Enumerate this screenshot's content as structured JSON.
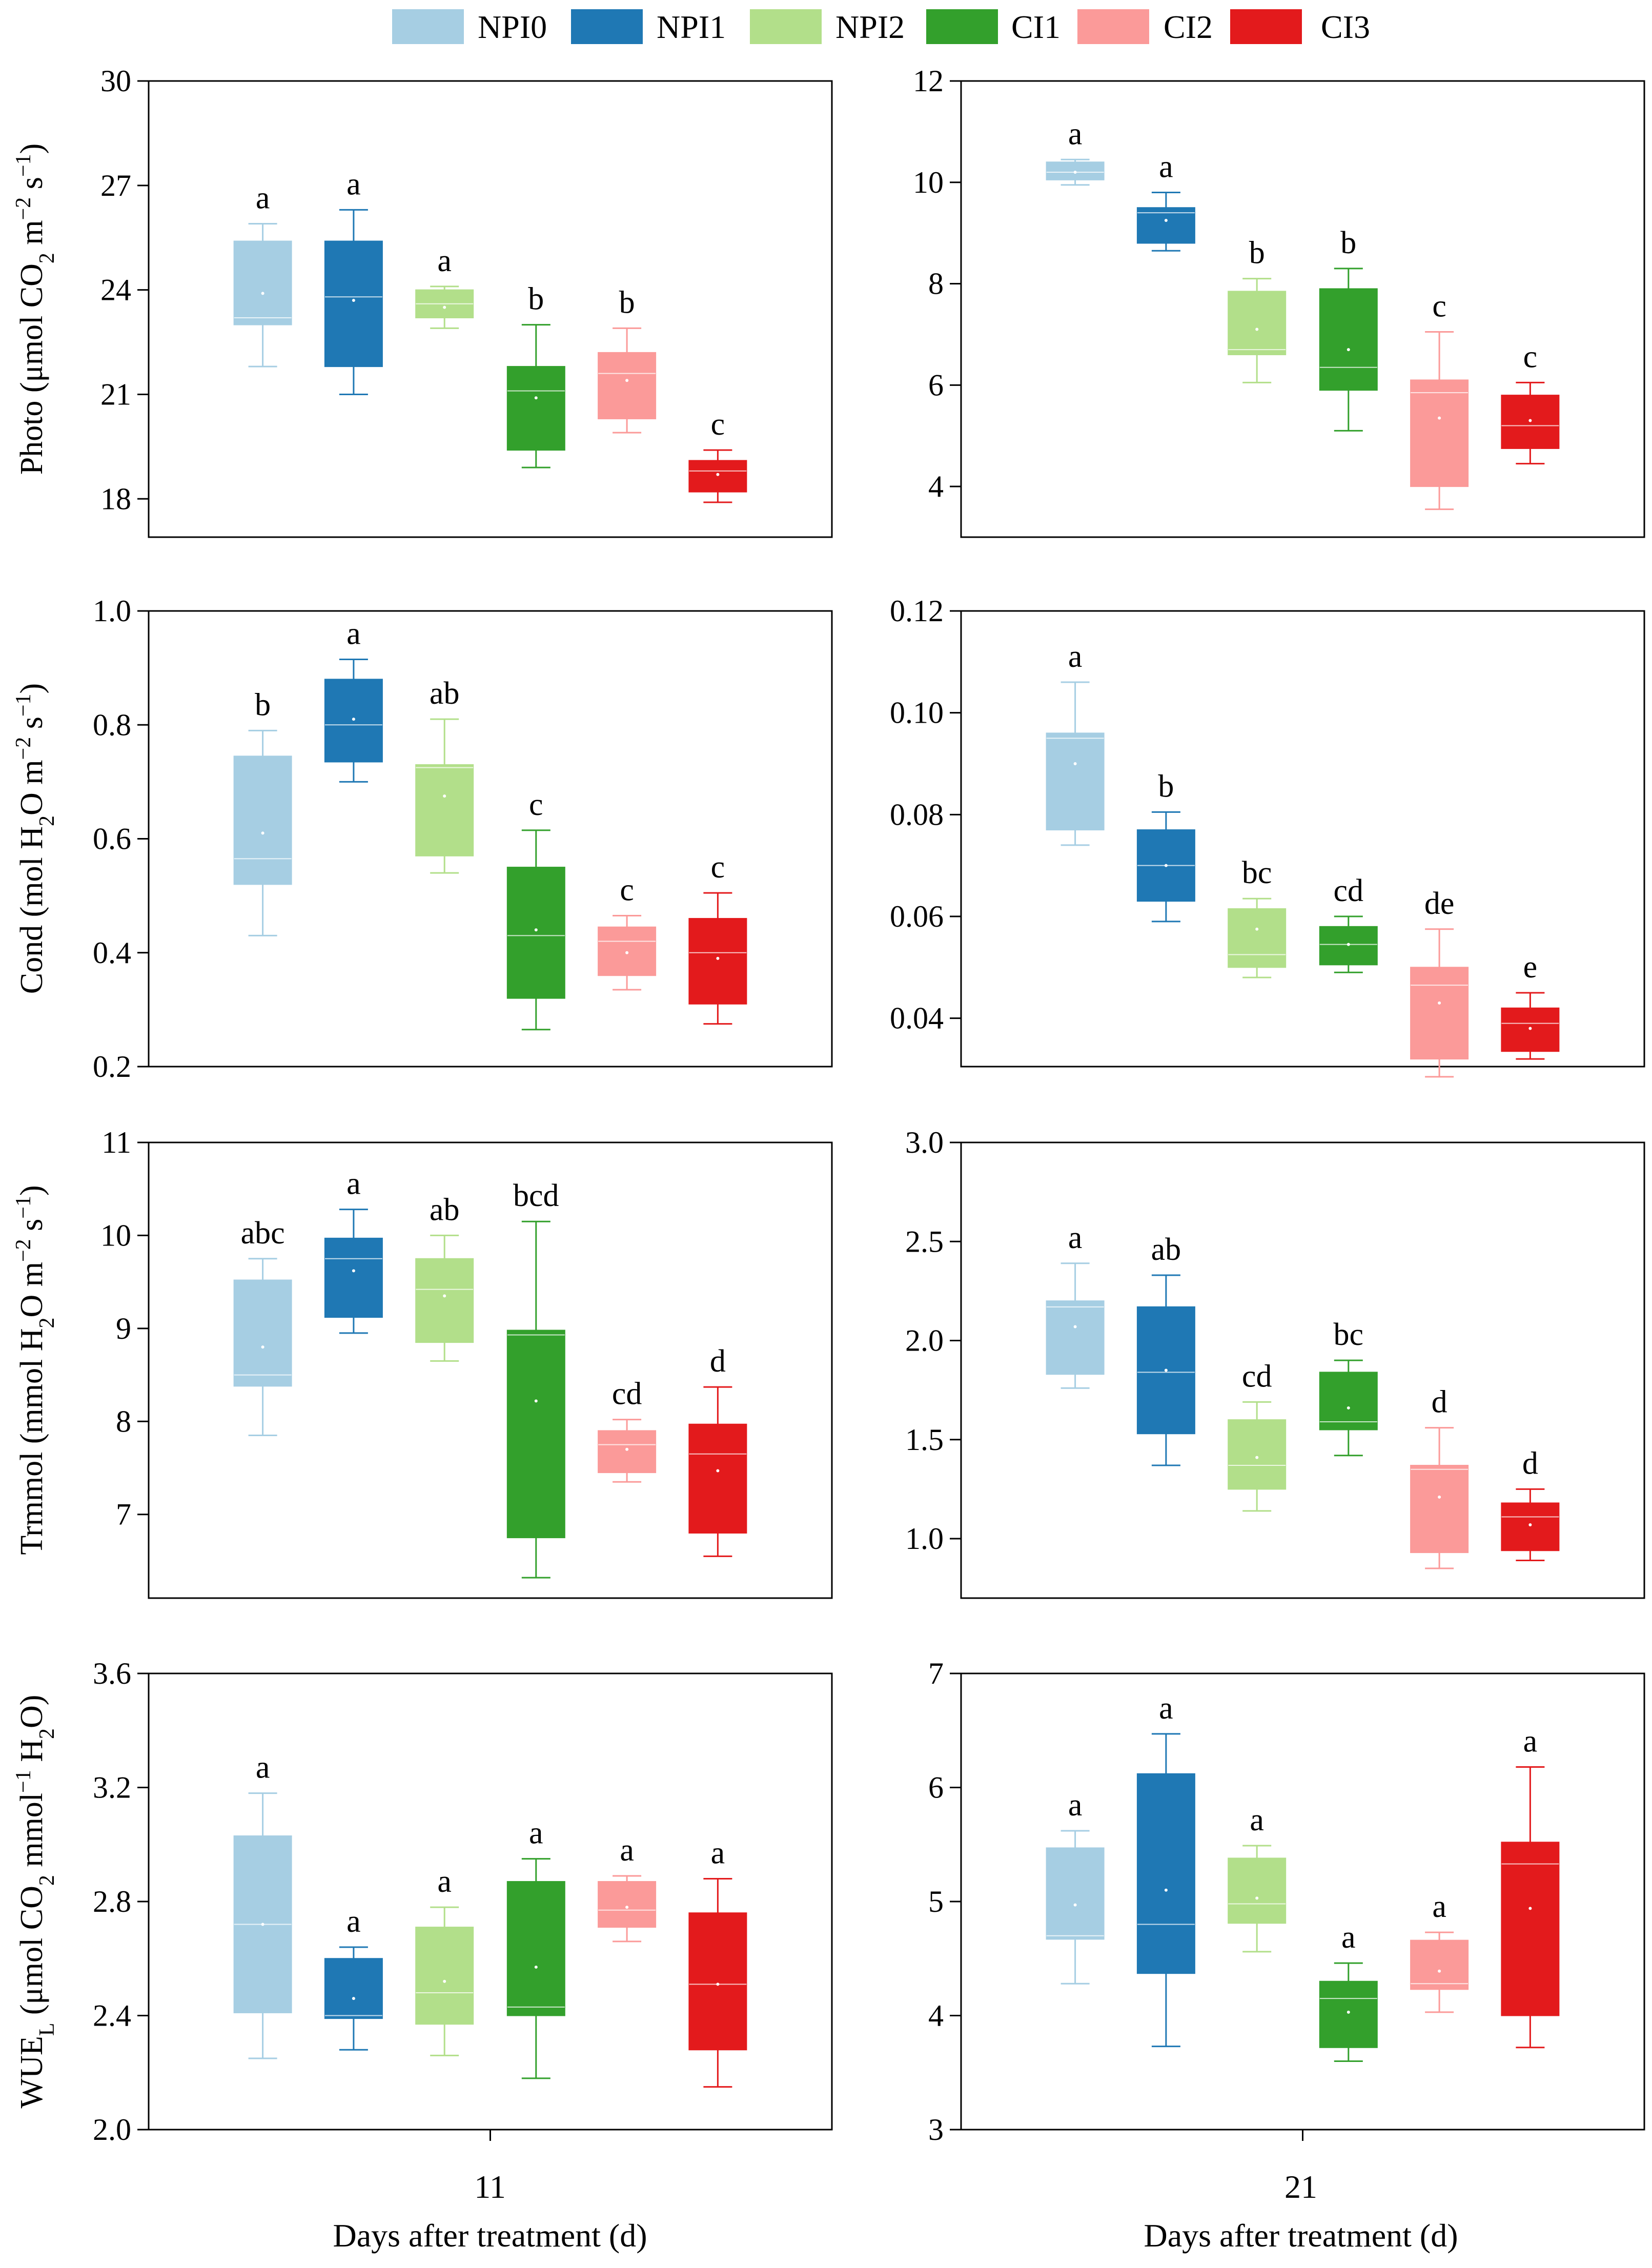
{
  "legend": [
    {
      "label": "NPI0",
      "color": "#a6cee3"
    },
    {
      "label": "NPI1",
      "color": "#1f78b4"
    },
    {
      "label": "NPI2",
      "color": "#b2df8a"
    },
    {
      "label": "CI1",
      "color": "#33a02c"
    },
    {
      "label": "CI2",
      "color": "#fb9a99"
    },
    {
      "label": "CI3",
      "color": "#e31a1c"
    }
  ],
  "x_axis": {
    "left_tick": "11",
    "right_tick": "21",
    "left_label": "Days after treatment (d)",
    "right_label": "Days after treatment (d)"
  },
  "y_labels": [
    {
      "main": "Photo (μmol CO",
      "s1": "2",
      "m2": " m",
      "p1": "−2",
      "m3": " s",
      "p2": "−1",
      "m4": ")"
    },
    {
      "main": "Cond (mol H",
      "s1": "2",
      "m2": "O m",
      "p1": "−2",
      "m3": " s",
      "p2": "−1",
      "m4": ")"
    },
    {
      "main": "Trmmol (mmol H",
      "s1": "2",
      "m2": "O m",
      "p1": "−2",
      "m3": " s",
      "p2": "−1",
      "m4": ")"
    },
    {
      "main": "WUE",
      "s1": "L",
      "m2": " (μmol CO",
      "s2": "2",
      "m3": " mmol",
      "p1": "−1",
      "m4": " H",
      "s3": "2",
      "m5": "O)"
    }
  ],
  "chart_data": [
    {
      "type": "box",
      "id": "photo-11",
      "row": 0,
      "col": 0,
      "ylabel": "Photo (μmol CO2 m−2 s−1)",
      "xlabel": "Days after treatment (d)",
      "x_tick": "11",
      "ylim": [
        16.9,
        30
      ],
      "yticks": [
        18,
        21,
        24,
        27,
        30
      ],
      "decimals": 0,
      "groups": [
        "NPI0",
        "NPI1",
        "NPI2",
        "CI1",
        "CI2",
        "CI3"
      ],
      "boxes": [
        {
          "min": 21.8,
          "q1": 23.0,
          "median": 23.2,
          "q3": 25.4,
          "max": 25.9,
          "mean": 23.9,
          "sig": "a"
        },
        {
          "min": 21.0,
          "q1": 21.8,
          "median": 23.8,
          "q3": 25.4,
          "max": 26.3,
          "mean": 23.7,
          "sig": "a"
        },
        {
          "min": 22.9,
          "q1": 23.2,
          "median": 23.6,
          "q3": 24.0,
          "max": 24.1,
          "mean": 23.5,
          "sig": "a"
        },
        {
          "min": 18.9,
          "q1": 19.4,
          "median": 21.1,
          "q3": 21.8,
          "max": 23.0,
          "mean": 20.9,
          "sig": "b"
        },
        {
          "min": 19.9,
          "q1": 20.3,
          "median": 21.6,
          "q3": 22.2,
          "max": 22.9,
          "mean": 21.4,
          "sig": "b"
        },
        {
          "min": 17.9,
          "q1": 18.2,
          "median": 18.8,
          "q3": 19.1,
          "max": 19.4,
          "mean": 18.7,
          "sig": "c"
        }
      ]
    },
    {
      "type": "box",
      "id": "photo-21",
      "row": 0,
      "col": 1,
      "ylabel": "Photo (μmol CO2 m−2 s−1)",
      "xlabel": "Days after treatment (d)",
      "x_tick": "21",
      "ylim": [
        3.0,
        12.0
      ],
      "yticks": [
        4,
        6,
        8,
        10,
        12
      ],
      "decimals": 0,
      "groups": [
        "NPI0",
        "NPI1",
        "NPI2",
        "CI1",
        "CI2",
        "CI3"
      ],
      "boxes": [
        {
          "min": 9.95,
          "q1": 10.05,
          "median": 10.2,
          "q3": 10.4,
          "max": 10.45,
          "mean": 10.2,
          "sig": "a"
        },
        {
          "min": 8.65,
          "q1": 8.8,
          "median": 9.4,
          "q3": 9.5,
          "max": 9.8,
          "mean": 9.25,
          "sig": "a"
        },
        {
          "min": 6.05,
          "q1": 6.6,
          "median": 6.7,
          "q3": 7.85,
          "max": 8.1,
          "mean": 7.1,
          "sig": "b"
        },
        {
          "min": 5.1,
          "q1": 5.9,
          "median": 6.35,
          "q3": 7.9,
          "max": 8.3,
          "mean": 6.7,
          "sig": "b"
        },
        {
          "min": 3.55,
          "q1": 4.0,
          "median": 5.85,
          "q3": 6.1,
          "max": 7.05,
          "mean": 5.35,
          "sig": "c"
        },
        {
          "min": 4.45,
          "q1": 4.75,
          "median": 5.2,
          "q3": 5.8,
          "max": 6.05,
          "mean": 5.3,
          "sig": "c"
        }
      ]
    },
    {
      "type": "box",
      "id": "cond-11",
      "row": 1,
      "col": 0,
      "ylabel": "Cond (mol H2O m−2 s−1)",
      "xlabel": "Days after treatment (d)",
      "x_tick": "11",
      "ylim": [
        0.2,
        1.0
      ],
      "yticks": [
        0.2,
        0.4,
        0.6,
        0.8,
        1.0
      ],
      "decimals": 1,
      "groups": [
        "NPI0",
        "NPI1",
        "NPI2",
        "CI1",
        "CI2",
        "CI3"
      ],
      "boxes": [
        {
          "min": 0.43,
          "q1": 0.52,
          "median": 0.565,
          "q3": 0.745,
          "max": 0.79,
          "mean": 0.61,
          "sig": "b"
        },
        {
          "min": 0.7,
          "q1": 0.735,
          "median": 0.8,
          "q3": 0.88,
          "max": 0.915,
          "mean": 0.81,
          "sig": "a"
        },
        {
          "min": 0.54,
          "q1": 0.57,
          "median": 0.725,
          "q3": 0.73,
          "max": 0.81,
          "mean": 0.675,
          "sig": "ab"
        },
        {
          "min": 0.265,
          "q1": 0.32,
          "median": 0.43,
          "q3": 0.55,
          "max": 0.615,
          "mean": 0.44,
          "sig": "c"
        },
        {
          "min": 0.335,
          "q1": 0.36,
          "median": 0.42,
          "q3": 0.445,
          "max": 0.465,
          "mean": 0.4,
          "sig": "c"
        },
        {
          "min": 0.275,
          "q1": 0.31,
          "median": 0.4,
          "q3": 0.46,
          "max": 0.505,
          "mean": 0.39,
          "sig": "c"
        }
      ]
    },
    {
      "type": "box",
      "id": "cond-21",
      "row": 1,
      "col": 1,
      "ylabel": "Cond (mol H2O m−2 s−1)",
      "xlabel": "Days after treatment (d)",
      "x_tick": "21",
      "ylim": [
        0.0305,
        0.12
      ],
      "yticks": [
        0.04,
        0.06,
        0.08,
        0.1,
        0.12
      ],
      "decimals": 2,
      "groups": [
        "NPI0",
        "NPI1",
        "NPI2",
        "CI1",
        "CI2",
        "CI3"
      ],
      "boxes": [
        {
          "min": 0.074,
          "q1": 0.077,
          "median": 0.095,
          "q3": 0.096,
          "max": 0.106,
          "mean": 0.09,
          "sig": "a"
        },
        {
          "min": 0.059,
          "q1": 0.063,
          "median": 0.07,
          "q3": 0.077,
          "max": 0.0805,
          "mean": 0.07,
          "sig": "b"
        },
        {
          "min": 0.048,
          "q1": 0.05,
          "median": 0.0525,
          "q3": 0.0615,
          "max": 0.0635,
          "mean": 0.0575,
          "sig": "bc"
        },
        {
          "min": 0.049,
          "q1": 0.0505,
          "median": 0.0545,
          "q3": 0.058,
          "max": 0.06,
          "mean": 0.0545,
          "sig": "cd"
        },
        {
          "min": 0.0285,
          "q1": 0.032,
          "median": 0.0465,
          "q3": 0.05,
          "max": 0.0575,
          "mean": 0.043,
          "sig": "de"
        },
        {
          "min": 0.032,
          "q1": 0.0335,
          "median": 0.039,
          "q3": 0.042,
          "max": 0.045,
          "mean": 0.038,
          "sig": "e"
        }
      ]
    },
    {
      "type": "box",
      "id": "trmmol-11",
      "row": 2,
      "col": 0,
      "ylabel": "Trmmol (mmol H2O m−2 s−1)",
      "xlabel": "Days after treatment (d)",
      "x_tick": "11",
      "ylim": [
        6.1,
        11.0
      ],
      "yticks": [
        7,
        8,
        9,
        10,
        11
      ],
      "decimals": 0,
      "groups": [
        "NPI0",
        "NPI1",
        "NPI2",
        "CI1",
        "CI2",
        "CI3"
      ],
      "boxes": [
        {
          "min": 7.85,
          "q1": 8.38,
          "median": 8.5,
          "q3": 9.52,
          "max": 9.75,
          "mean": 8.8,
          "sig": "abc"
        },
        {
          "min": 8.95,
          "q1": 9.12,
          "median": 9.75,
          "q3": 9.97,
          "max": 10.28,
          "mean": 9.62,
          "sig": "a"
        },
        {
          "min": 8.65,
          "q1": 8.85,
          "median": 9.42,
          "q3": 9.75,
          "max": 10.0,
          "mean": 9.35,
          "sig": "ab"
        },
        {
          "min": 6.32,
          "q1": 6.75,
          "median": 8.93,
          "q3": 8.98,
          "max": 10.15,
          "mean": 8.22,
          "sig": "bcd"
        },
        {
          "min": 7.35,
          "q1": 7.45,
          "median": 7.75,
          "q3": 7.9,
          "max": 8.02,
          "mean": 7.7,
          "sig": "cd"
        },
        {
          "min": 6.55,
          "q1": 6.8,
          "median": 7.65,
          "q3": 7.97,
          "max": 8.37,
          "mean": 7.47,
          "sig": "d"
        }
      ]
    },
    {
      "type": "box",
      "id": "trmmol-21",
      "row": 2,
      "col": 1,
      "ylabel": "Trmmol (mmol H2O m−2 s−1)",
      "xlabel": "Days after treatment (d)",
      "x_tick": "21",
      "ylim": [
        0.7,
        3.0
      ],
      "yticks": [
        1.0,
        1.5,
        2.0,
        2.5,
        3.0
      ],
      "decimals": 1,
      "groups": [
        "NPI0",
        "NPI1",
        "NPI2",
        "CI1",
        "CI2",
        "CI3"
      ],
      "boxes": [
        {
          "min": 1.76,
          "q1": 1.83,
          "median": 2.17,
          "q3": 2.2,
          "max": 2.39,
          "mean": 2.07,
          "sig": "a"
        },
        {
          "min": 1.37,
          "q1": 1.53,
          "median": 1.84,
          "q3": 2.17,
          "max": 2.33,
          "mean": 1.85,
          "sig": "ab"
        },
        {
          "min": 1.14,
          "q1": 1.25,
          "median": 1.37,
          "q3": 1.6,
          "max": 1.69,
          "mean": 1.41,
          "sig": "cd"
        },
        {
          "min": 1.42,
          "q1": 1.55,
          "median": 1.59,
          "q3": 1.84,
          "max": 1.9,
          "mean": 1.66,
          "sig": "bc"
        },
        {
          "min": 0.85,
          "q1": 0.93,
          "median": 1.35,
          "q3": 1.37,
          "max": 1.56,
          "mean": 1.21,
          "sig": "d"
        },
        {
          "min": 0.89,
          "q1": 0.94,
          "median": 1.11,
          "q3": 1.18,
          "max": 1.25,
          "mean": 1.07,
          "sig": "d"
        }
      ]
    },
    {
      "type": "box",
      "id": "wue-11",
      "row": 3,
      "col": 0,
      "ylabel": "WUEL (μmol CO2 mmol−1 H2O)",
      "xlabel": "Days after treatment (d)",
      "x_tick": "11",
      "ylim": [
        2.0,
        3.6
      ],
      "yticks": [
        2.0,
        2.4,
        2.8,
        3.2,
        3.6
      ],
      "decimals": 1,
      "groups": [
        "NPI0",
        "NPI1",
        "NPI2",
        "CI1",
        "CI2",
        "CI3"
      ],
      "boxes": [
        {
          "min": 2.25,
          "q1": 2.41,
          "median": 2.72,
          "q3": 3.03,
          "max": 3.18,
          "mean": 2.72,
          "sig": "a"
        },
        {
          "min": 2.28,
          "q1": 2.39,
          "median": 2.4,
          "q3": 2.6,
          "max": 2.64,
          "mean": 2.46,
          "sig": "a"
        },
        {
          "min": 2.26,
          "q1": 2.37,
          "median": 2.48,
          "q3": 2.71,
          "max": 2.78,
          "mean": 2.52,
          "sig": "a"
        },
        {
          "min": 2.18,
          "q1": 2.4,
          "median": 2.43,
          "q3": 2.87,
          "max": 2.95,
          "mean": 2.57,
          "sig": "a"
        },
        {
          "min": 2.66,
          "q1": 2.71,
          "median": 2.77,
          "q3": 2.87,
          "max": 2.89,
          "mean": 2.78,
          "sig": "a"
        },
        {
          "min": 2.15,
          "q1": 2.28,
          "median": 2.51,
          "q3": 2.76,
          "max": 2.88,
          "mean": 2.51,
          "sig": "a"
        }
      ]
    },
    {
      "type": "box",
      "id": "wue-21",
      "row": 3,
      "col": 1,
      "ylabel": "WUEL (μmol CO2 mmol−1 H2O)",
      "xlabel": "Days after treatment (d)",
      "x_tick": "21",
      "ylim": [
        3.0,
        7.0
      ],
      "yticks": [
        3,
        4,
        5,
        6,
        7
      ],
      "decimals": 0,
      "groups": [
        "NPI0",
        "NPI1",
        "NPI2",
        "CI1",
        "CI2",
        "CI3"
      ],
      "boxes": [
        {
          "min": 4.28,
          "q1": 4.67,
          "median": 4.7,
          "q3": 5.47,
          "max": 5.62,
          "mean": 4.97,
          "sig": "a"
        },
        {
          "min": 3.73,
          "q1": 4.37,
          "median": 4.8,
          "q3": 6.12,
          "max": 6.47,
          "mean": 5.1,
          "sig": "a"
        },
        {
          "min": 4.56,
          "q1": 4.81,
          "median": 4.98,
          "q3": 5.38,
          "max": 5.49,
          "mean": 5.03,
          "sig": "a"
        },
        {
          "min": 3.6,
          "q1": 3.72,
          "median": 4.15,
          "q3": 4.3,
          "max": 4.46,
          "mean": 4.03,
          "sig": "a"
        },
        {
          "min": 4.03,
          "q1": 4.23,
          "median": 4.28,
          "q3": 4.66,
          "max": 4.73,
          "mean": 4.39,
          "sig": "a"
        },
        {
          "min": 3.72,
          "q1": 4.0,
          "median": 5.33,
          "q3": 5.52,
          "max": 6.18,
          "mean": 4.94,
          "sig": "a"
        }
      ]
    }
  ]
}
